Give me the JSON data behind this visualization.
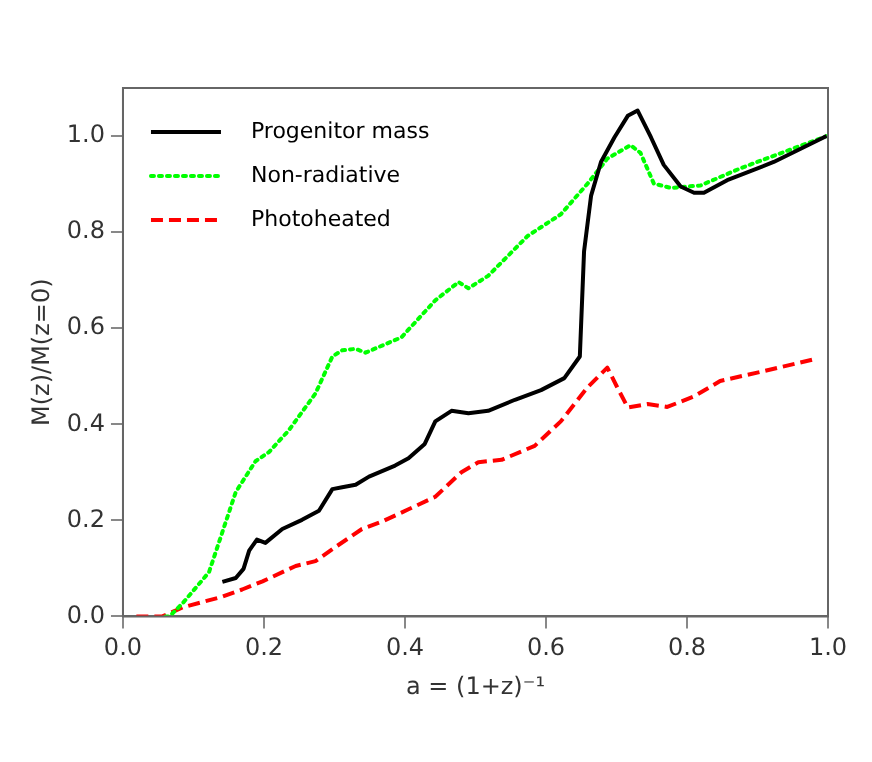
{
  "chart_data": {
    "type": "line",
    "xlabel": "a = (1+z)⁻¹",
    "ylabel": "M(z)/M(z=0)",
    "xlim": [
      0,
      1
    ],
    "ylim": [
      0,
      1.1
    ],
    "xticks": [
      {
        "value": 0,
        "label": "0.0"
      },
      {
        "value": 0.2,
        "label": "0.2"
      },
      {
        "value": 0.4,
        "label": "0.4"
      },
      {
        "value": 0.6,
        "label": "0.6"
      },
      {
        "value": 0.8,
        "label": "0.8"
      },
      {
        "value": 1,
        "label": "1.0"
      }
    ],
    "yticks": [
      {
        "value": 0,
        "label": "0.0"
      },
      {
        "value": 0.2,
        "label": "0.2"
      },
      {
        "value": 0.4,
        "label": "0.4"
      },
      {
        "value": 0.6,
        "label": "0.6"
      },
      {
        "value": 0.8,
        "label": "0.8"
      },
      {
        "value": 1,
        "label": "1.0"
      }
    ],
    "grid": false,
    "legend": "top left",
    "marker": "none",
    "series": [
      {
        "name": "Progenitor mass",
        "color": "#000000",
        "line_style": "solid",
        "x": [
          0.141,
          0.16,
          0.171,
          0.179,
          0.19,
          0.202,
          0.226,
          0.254,
          0.278,
          0.297,
          0.311,
          0.33,
          0.349,
          0.386,
          0.405,
          0.428,
          0.443,
          0.466,
          0.49,
          0.518,
          0.556,
          0.593,
          0.626,
          0.648,
          0.654,
          0.664,
          0.678,
          0.697,
          0.716,
          0.73,
          0.749,
          0.767,
          0.791,
          0.81,
          0.824,
          0.857,
          0.923,
          0.998
        ],
        "values": [
          0.072,
          0.08,
          0.099,
          0.137,
          0.16,
          0.153,
          0.182,
          0.201,
          0.22,
          0.265,
          0.269,
          0.274,
          0.291,
          0.314,
          0.329,
          0.359,
          0.406,
          0.428,
          0.423,
          0.428,
          0.451,
          0.471,
          0.496,
          0.541,
          0.76,
          0.876,
          0.946,
          0.997,
          1.042,
          1.053,
          0.997,
          0.94,
          0.895,
          0.882,
          0.882,
          0.908,
          0.946,
          1.0
        ]
      },
      {
        "name": "Non-radiative",
        "color": "#00ff00",
        "line_style": "dotted",
        "x": [
          0.06,
          0.066,
          0.085,
          0.122,
          0.16,
          0.188,
          0.207,
          0.235,
          0.273,
          0.297,
          0.311,
          0.33,
          0.344,
          0.395,
          0.443,
          0.476,
          0.49,
          0.518,
          0.574,
          0.621,
          0.659,
          0.687,
          0.72,
          0.734,
          0.753,
          0.777,
          0.819,
          0.876,
          0.998
        ],
        "values": [
          0,
          0,
          0.028,
          0.092,
          0.259,
          0.323,
          0.342,
          0.387,
          0.464,
          0.541,
          0.554,
          0.557,
          0.549,
          0.581,
          0.658,
          0.696,
          0.683,
          0.709,
          0.792,
          0.837,
          0.901,
          0.953,
          0.981,
          0.965,
          0.901,
          0.892,
          0.897,
          0.933,
          1.0
        ]
      },
      {
        "name": "Photoheated",
        "color": "#ff0000",
        "line_style": "dashed",
        "x": [
          0.019,
          0.056,
          0.085,
          0.141,
          0.169,
          0.198,
          0.245,
          0.273,
          0.301,
          0.339,
          0.367,
          0.405,
          0.443,
          0.48,
          0.504,
          0.537,
          0.584,
          0.621,
          0.659,
          0.687,
          0.701,
          0.716,
          0.744,
          0.772,
          0.81,
          0.847,
          0.904,
          0.942,
          0.979
        ],
        "values": [
          0,
          0,
          0.019,
          0.041,
          0.056,
          0.073,
          0.105,
          0.115,
          0.144,
          0.182,
          0.197,
          0.223,
          0.249,
          0.3,
          0.321,
          0.326,
          0.355,
          0.406,
          0.477,
          0.518,
          0.477,
          0.435,
          0.442,
          0.436,
          0.458,
          0.49,
          0.509,
          0.522,
          0.535
        ]
      }
    ]
  }
}
